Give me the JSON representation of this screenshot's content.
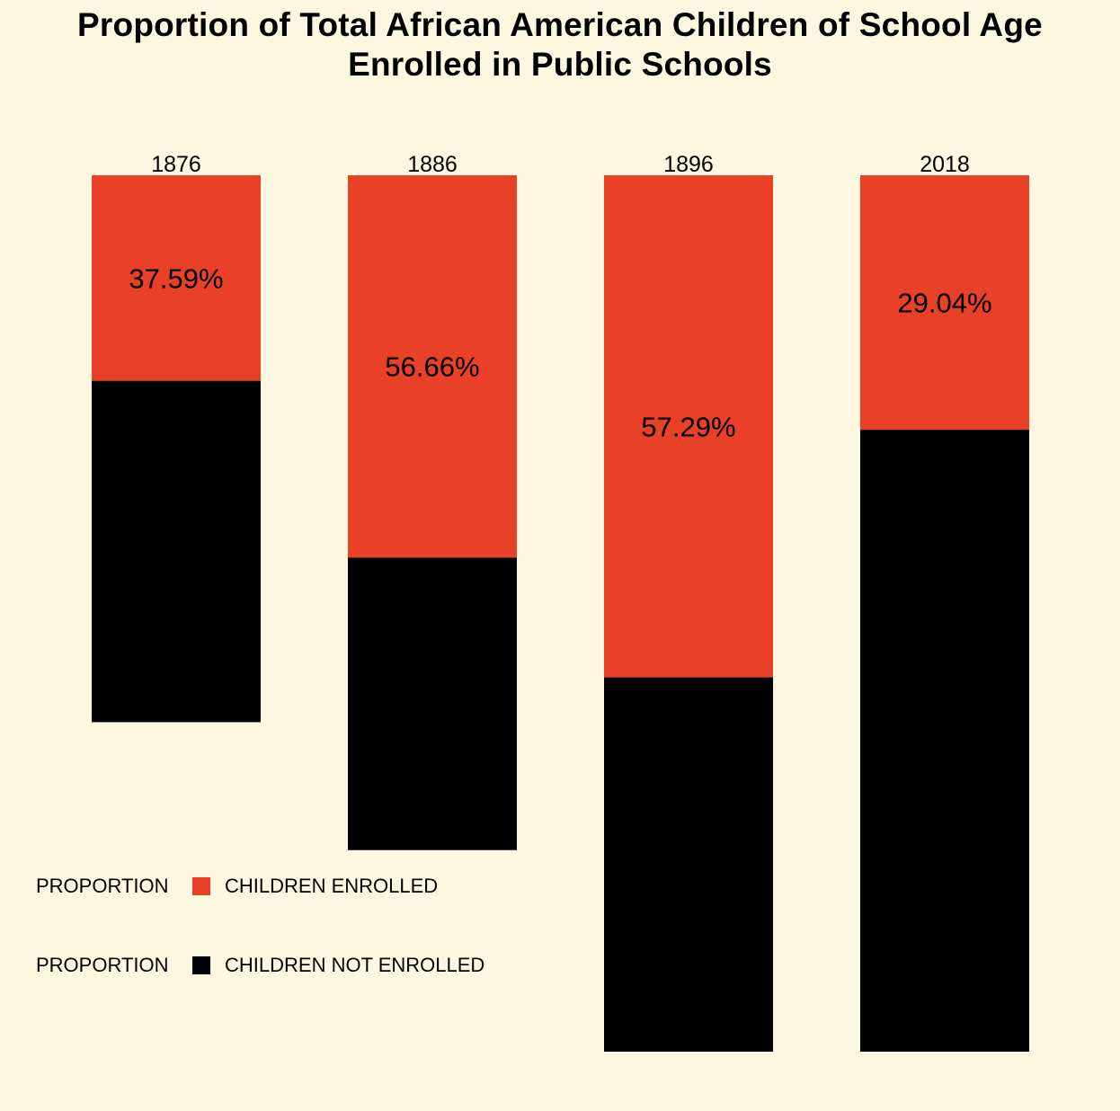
{
  "colors": {
    "background": "#fdf6e0",
    "enrolled": "#e84127",
    "not_enrolled": "#000000"
  },
  "chart_data": {
    "type": "bar",
    "stacked": true,
    "title_lines": [
      "Proportion of Total African American Children of School Age",
      "Enrolled in Public Schools"
    ],
    "categories": [
      "1876",
      "1886",
      "1896",
      "2018"
    ],
    "series": [
      {
        "name": "CHILDREN ENROLLED",
        "color": "#e84127",
        "values": [
          37.59,
          56.66,
          57.29,
          29.04
        ],
        "labels": [
          "37.59%",
          "56.66%",
          "57.29%",
          "29.04%"
        ]
      },
      {
        "name": "CHILDREN NOT ENROLLED",
        "color": "#000000",
        "values": [
          62.41,
          43.34,
          42.71,
          70.96
        ]
      }
    ],
    "relative_total": [
      0.624,
      0.77,
      1.0,
      1.0
    ],
    "legend": [
      {
        "title": "PROPORTION",
        "label": "CHILDREN ENROLLED",
        "color": "#e84127"
      },
      {
        "title": "PROPORTION",
        "label": "CHILDREN NOT ENROLLED",
        "color": "#000000"
      }
    ],
    "legend_position": "bottom-left",
    "grid": false
  }
}
